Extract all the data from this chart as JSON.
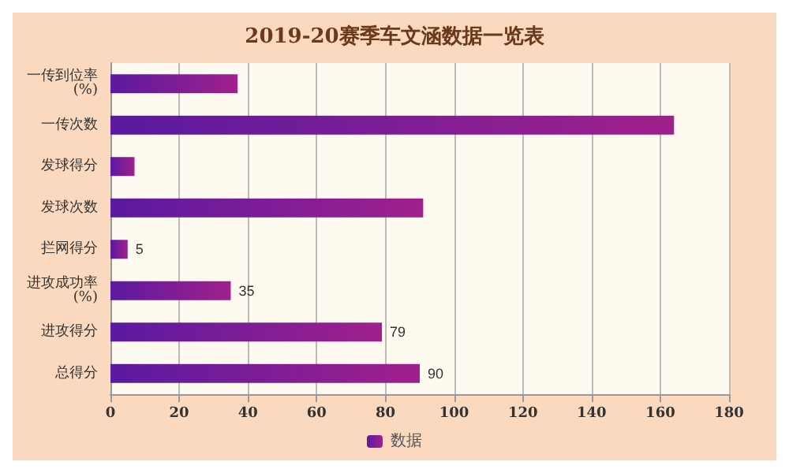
{
  "chart_data": {
    "type": "bar",
    "orientation": "horizontal",
    "title": "2019-20赛季车文涵数据一览表",
    "categories": [
      "一传到位率(%)",
      "一传次数",
      "发球得分",
      "发球次数",
      "拦网得分",
      "进攻成功率(%)",
      "进攻得分",
      "总得分"
    ],
    "series": [
      {
        "name": "数据",
        "color": "#a0208c",
        "values": [
          37,
          164,
          7,
          91,
          5,
          35,
          79,
          90
        ],
        "value_labels": [
          null,
          null,
          null,
          null,
          "5",
          "35",
          "79",
          "90"
        ]
      }
    ],
    "xlim": [
      0,
      180
    ],
    "xticks": [
      0,
      20,
      40,
      60,
      80,
      100,
      120,
      140,
      160,
      180
    ],
    "grid": "x",
    "legend": "bottom"
  }
}
